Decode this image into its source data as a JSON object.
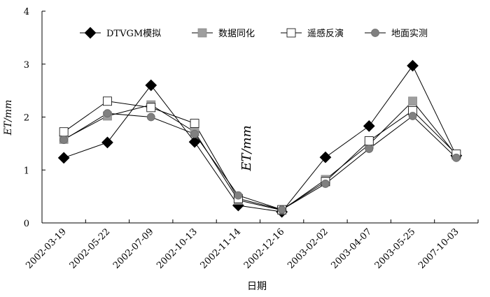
{
  "chart_data": {
    "type": "line",
    "ylabel": "ET/mm",
    "xlabel": "日期",
    "annotation": "ET/mm",
    "ylim": [
      0,
      4
    ],
    "yticks": [
      0,
      1,
      2,
      3,
      4
    ],
    "categories": [
      "2002-03-19",
      "2002-05-22",
      "2002-07-09",
      "2002-10-13",
      "2002-11-14",
      "2002-12-16",
      "2003-02-02",
      "2003-04-07",
      "2003-05-25",
      "2007-10-03"
    ],
    "grid": false,
    "legend_position": "top",
    "series": [
      {
        "name": "DTVGM模拟",
        "marker": "diamond",
        "fill": "#000000",
        "values": [
          1.23,
          1.52,
          2.6,
          1.53,
          0.33,
          0.21,
          1.24,
          1.83,
          2.97,
          1.27
        ]
      },
      {
        "name": "数据同化",
        "marker": "square",
        "fill": "#9e9e9e",
        "values": [
          1.58,
          2.02,
          2.23,
          1.72,
          0.43,
          0.24,
          0.82,
          1.48,
          2.3,
          1.28
        ]
      },
      {
        "name": "遥感反演",
        "marker": "square",
        "fill": "#ffffff",
        "values": [
          1.72,
          2.3,
          2.18,
          1.88,
          0.46,
          0.25,
          0.78,
          1.55,
          2.12,
          1.3
        ]
      },
      {
        "name": "地面实测",
        "marker": "circle",
        "fill": "#808080",
        "values": [
          1.57,
          2.07,
          2.0,
          1.68,
          0.52,
          0.25,
          0.74,
          1.4,
          2.02,
          1.23
        ]
      }
    ]
  }
}
